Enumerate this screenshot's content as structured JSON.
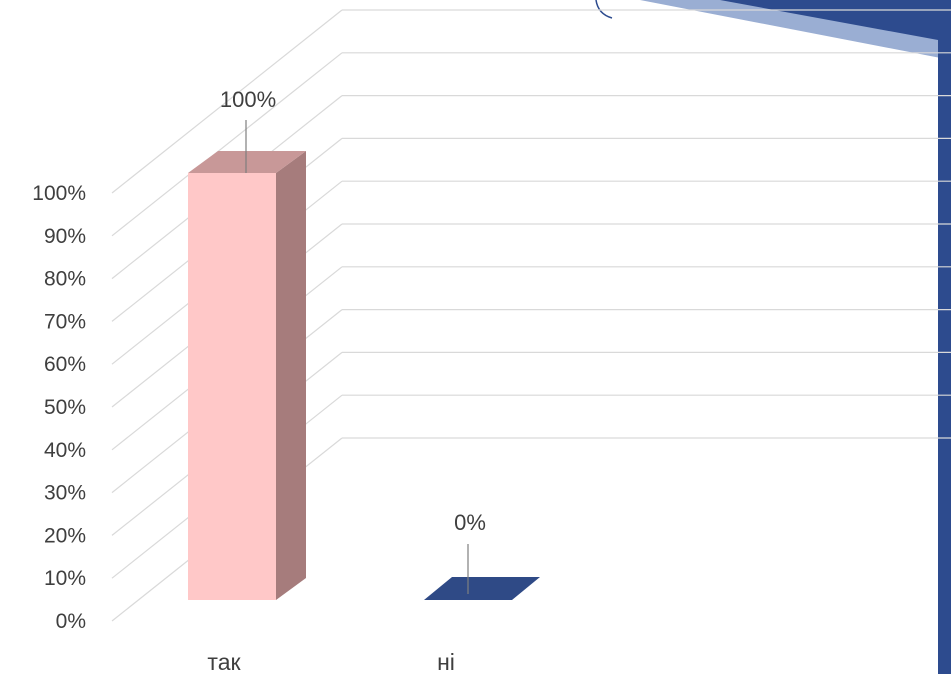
{
  "chart_data": {
    "type": "bar",
    "categories": [
      "так",
      "ні"
    ],
    "values": [
      100,
      0
    ],
    "data_labels": [
      "100%",
      "0%"
    ],
    "y_ticks": [
      "0%",
      "10%",
      "20%",
      "30%",
      "40%",
      "50%",
      "60%",
      "70%",
      "80%",
      "90%",
      "100%"
    ],
    "ylim": [
      0,
      100
    ],
    "grid": true,
    "style": "3d-column",
    "colors": {
      "bar_front": [
        "#ffc8c8",
        "#2f4a86"
      ],
      "bar_side": [
        "#a67c7c",
        "#1f3366"
      ],
      "bar_top": [
        "#c89898",
        "#2f4a86"
      ],
      "grid": "#d9d9d9",
      "text": "#3f3f3f",
      "decor_dark": "#2d4b8e",
      "decor_light": "#9aaed3"
    }
  }
}
